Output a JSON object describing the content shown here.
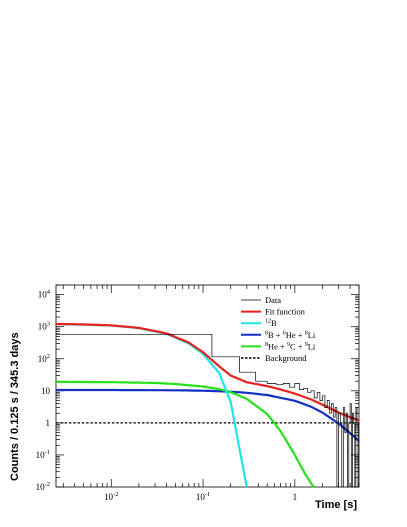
{
  "chart_data": {
    "type": "line",
    "xlabel": "Time [s]",
    "ylabel": "Counts / 0.125 s / 345.3 days",
    "x_scale": "log",
    "y_scale": "log",
    "xlim": [
      0.0025,
      5.0
    ],
    "ylim": [
      0.01,
      20000
    ],
    "x_ticks": [
      {
        "v": 0.01,
        "base": "10",
        "exp": "-2"
      },
      {
        "v": 0.1,
        "base": "10",
        "exp": "-1"
      },
      {
        "v": 1,
        "base": "1",
        "exp": ""
      }
    ],
    "y_ticks": [
      {
        "v": 0.01,
        "base": "10",
        "exp": "-2"
      },
      {
        "v": 0.1,
        "base": "10",
        "exp": "-1"
      },
      {
        "v": 1,
        "base": "1",
        "exp": ""
      },
      {
        "v": 10,
        "base": "10",
        "exp": ""
      },
      {
        "v": 100,
        "base": "10",
        "exp": "2"
      },
      {
        "v": 1000,
        "base": "10",
        "exp": "3"
      },
      {
        "v": 10000,
        "base": "10",
        "exp": "4"
      }
    ],
    "legend_position": "top-right",
    "legend": [
      {
        "label": "Data",
        "color": "#000000",
        "style": "solid-thin"
      },
      {
        "label": "Fit function",
        "color": "#e8201e",
        "style": "solid"
      },
      {
        "sup": "12",
        "label": "B",
        "color": "#1fe6e6",
        "style": "solid"
      },
      {
        "sup1": "8",
        "part1": "B + ",
        "sup2": "6",
        "part2": "He + ",
        "sup3": "8",
        "part3": "Li",
        "color": "#1230c8",
        "style": "solid"
      },
      {
        "sup1": "8",
        "part1": "He + ",
        "sup2": "9",
        "part2": "C + ",
        "sup3": "9",
        "part3": "Li",
        "color": "#26e01a",
        "style": "solid"
      },
      {
        "label": "Background",
        "color": "#000000",
        "style": "dashed"
      }
    ],
    "series": [
      {
        "name": "Fit function",
        "color": "#e8201e",
        "x": [
          0.0025,
          0.005,
          0.01,
          0.02,
          0.04,
          0.07,
          0.1,
          0.15,
          0.2,
          0.3,
          0.5,
          0.7,
          1.0,
          1.5,
          2.0,
          3.0,
          4.0,
          5.0
        ],
        "y": [
          1220,
          1180,
          1100,
          920,
          620,
          320,
          160,
          58,
          30,
          18.5,
          14,
          11,
          8.2,
          5.4,
          3.7,
          2.1,
          1.5,
          1.2
        ]
      },
      {
        "name": "12B",
        "color": "#1fe6e6",
        "x": [
          0.0025,
          0.005,
          0.01,
          0.02,
          0.04,
          0.07,
          0.1,
          0.15,
          0.2,
          0.25,
          0.3
        ],
        "y": [
          1200,
          1160,
          1090,
          900,
          600,
          300,
          140,
          36,
          4.5,
          0.15,
          0.01
        ]
      },
      {
        "name": "8B + 6He + 8Li",
        "color": "#1230c8",
        "x": [
          0.0025,
          0.01,
          0.05,
          0.1,
          0.2,
          0.3,
          0.5,
          1.0,
          1.5,
          2.0,
          3.0,
          4.0,
          5.0
        ],
        "y": [
          10.6,
          10.6,
          10.4,
          10.1,
          9.4,
          8.7,
          7.4,
          4.9,
          3.2,
          2.1,
          0.95,
          0.48,
          0.27
        ]
      },
      {
        "name": "8He + 9C + 9Li",
        "color": "#26e01a",
        "x": [
          0.0025,
          0.01,
          0.03,
          0.05,
          0.1,
          0.15,
          0.2,
          0.3,
          0.5,
          0.7,
          1.0,
          1.3,
          1.6
        ],
        "y": [
          19,
          18.6,
          17.6,
          16.3,
          13.6,
          11.3,
          9.1,
          5.6,
          1.9,
          0.55,
          0.1,
          0.025,
          0.01
        ]
      },
      {
        "name": "Background",
        "color": "#000000",
        "dashed": true,
        "x": [
          0.0025,
          5.0
        ],
        "y": [
          1.0,
          1.0
        ]
      }
    ],
    "data_hist": {
      "name": "Data",
      "bin_width": 0.125,
      "first_bin": {
        "x": [
          0.0025,
          0.05
        ],
        "y": 580
      },
      "bins_y": [
        580,
        115,
        38,
        20,
        17,
        16,
        17,
        13,
        17,
        11,
        12,
        9,
        10,
        6,
        9,
        5,
        7,
        3,
        5,
        2,
        4,
        1.5,
        3,
        0.01,
        2,
        1,
        0.01,
        3,
        0.5,
        2,
        0.01,
        1,
        4,
        0.01,
        2,
        1,
        0.01,
        3,
        1,
        0.01
      ]
    }
  }
}
